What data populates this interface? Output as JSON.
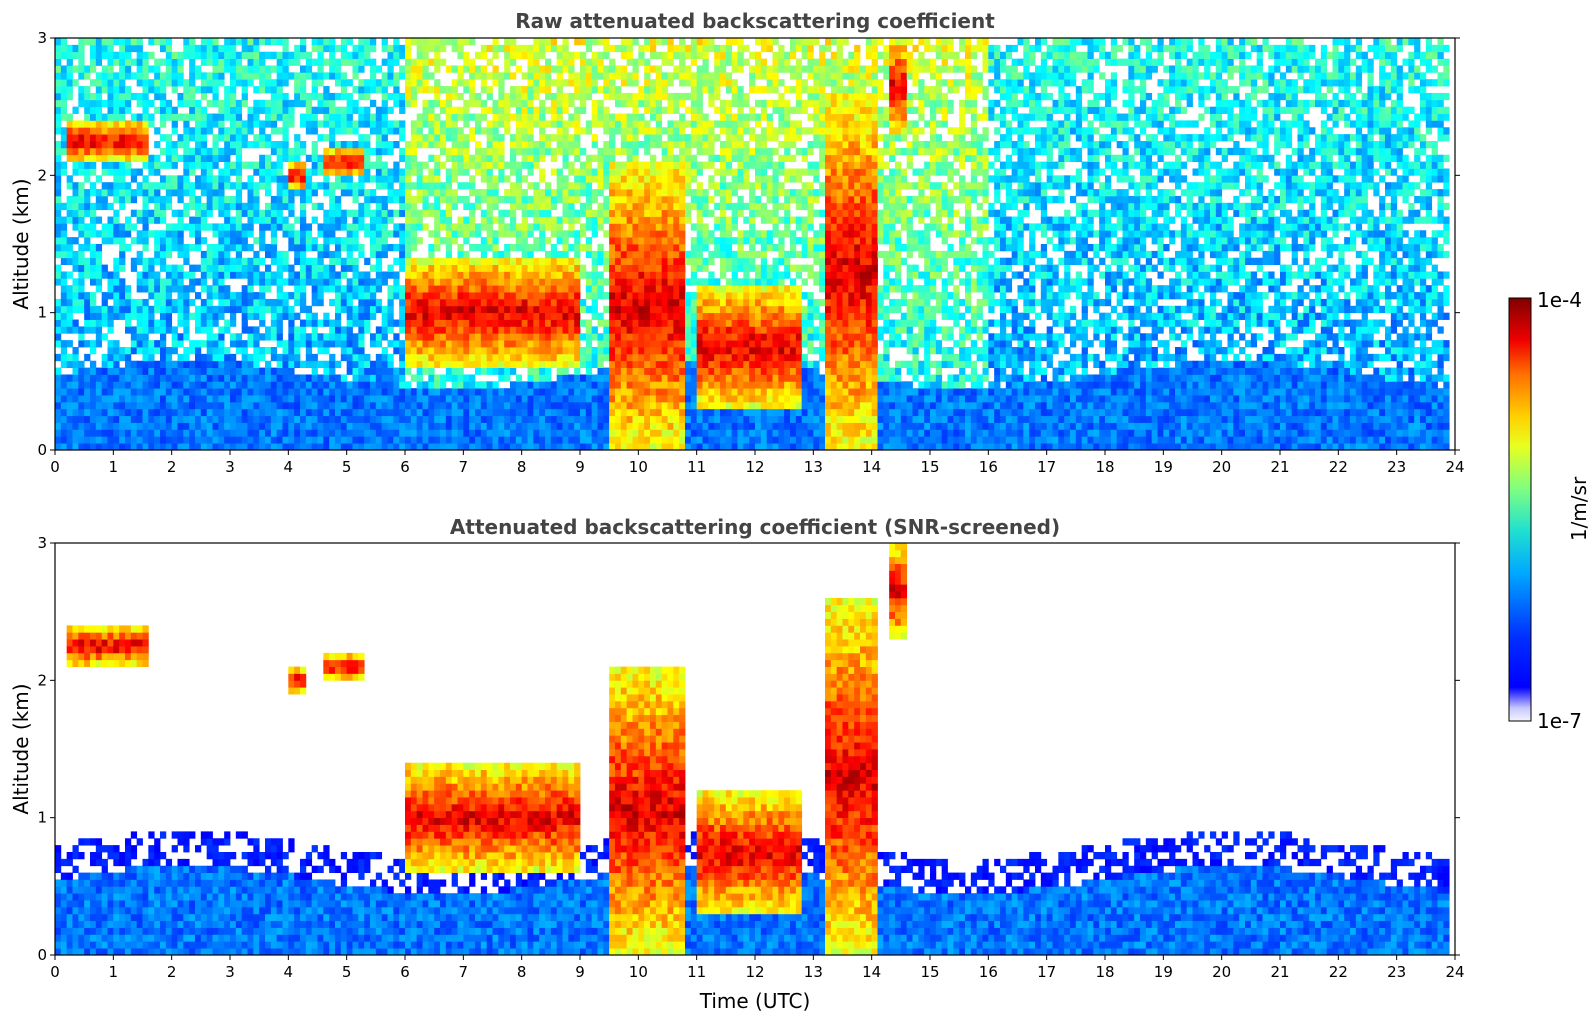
{
  "chart_data": [
    {
      "type": "heatmap",
      "title": "Raw attenuated backscattering coefficient",
      "xlabel": "",
      "ylabel": "Altitude (km)",
      "xlim": [
        0,
        24
      ],
      "ylim": [
        0,
        3
      ],
      "x_ticks": [
        "0",
        "1",
        "2",
        "3",
        "4",
        "5",
        "6",
        "7",
        "8",
        "9",
        "10",
        "11",
        "12",
        "13",
        "14",
        "15",
        "16",
        "17",
        "18",
        "19",
        "20",
        "21",
        "22",
        "23",
        "24"
      ],
      "y_ticks": [
        "0",
        "1",
        "2",
        "3"
      ],
      "screened": false,
      "cloud_features": [
        {
          "t_start": 0.2,
          "t_end": 1.6,
          "alt_bottom": 2.1,
          "alt_top": 2.4
        },
        {
          "t_start": 4.0,
          "t_end": 4.3,
          "alt_bottom": 1.9,
          "alt_top": 2.1
        },
        {
          "t_start": 4.6,
          "t_end": 5.3,
          "alt_bottom": 2.0,
          "alt_top": 2.2
        },
        {
          "t_start": 6.0,
          "t_end": 9.0,
          "alt_bottom": 0.6,
          "alt_top": 1.4
        },
        {
          "t_start": 9.5,
          "t_end": 10.8,
          "alt_bottom": 0.0,
          "alt_top": 2.1
        },
        {
          "t_start": 11.0,
          "t_end": 12.8,
          "alt_bottom": 0.3,
          "alt_top": 1.2
        },
        {
          "t_start": 13.2,
          "t_end": 14.1,
          "alt_bottom": 0.0,
          "alt_top": 2.6
        },
        {
          "t_start": 14.3,
          "t_end": 14.6,
          "alt_bottom": 2.3,
          "alt_top": 3.0
        }
      ]
    },
    {
      "type": "heatmap",
      "title": "Attenuated backscattering coefficient (SNR-screened)",
      "xlabel": "Time (UTC)",
      "ylabel": "Altitude (km)",
      "xlim": [
        0,
        24
      ],
      "ylim": [
        0,
        3
      ],
      "x_ticks": [
        "0",
        "1",
        "2",
        "3",
        "4",
        "5",
        "6",
        "7",
        "8",
        "9",
        "10",
        "11",
        "12",
        "13",
        "14",
        "15",
        "16",
        "17",
        "18",
        "19",
        "20",
        "21",
        "22",
        "23",
        "24"
      ],
      "y_ticks": [
        "0",
        "1",
        "2",
        "3"
      ],
      "screened": true
    }
  ],
  "colorbar": {
    "max_label": "1e-4",
    "min_label": "1e-7",
    "unit_label": "1/m/sr",
    "colormap": "jet",
    "scale": "log",
    "range": [
      1e-07,
      0.0001
    ]
  },
  "colors": {
    "title": "#444444",
    "frame": "#000000"
  }
}
